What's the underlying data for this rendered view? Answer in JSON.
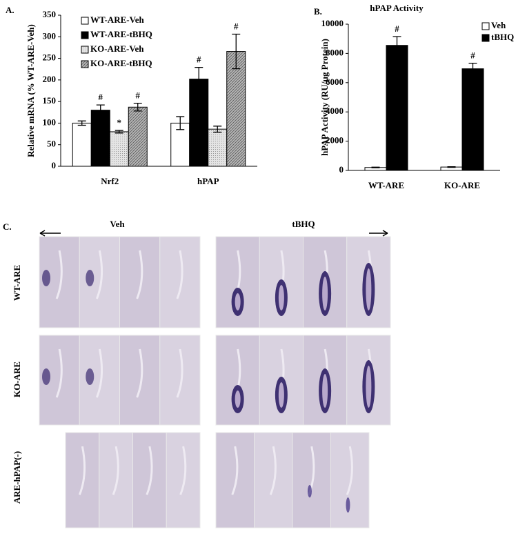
{
  "chart_data": [
    {
      "type": "bar",
      "panel_label": "A.",
      "ylabel": "Relative mRNA (% WT-ARE-Veh)",
      "categories": [
        "Nrf2",
        "hPAP"
      ],
      "ylim": [
        0,
        350
      ],
      "yticks": [
        0,
        50,
        100,
        150,
        200,
        250,
        300,
        350
      ],
      "series": [
        {
          "name": "WT-ARE-Veh",
          "color": "#ffffff",
          "pattern": "none",
          "values": [
            100,
            100
          ],
          "errors": [
            5,
            15
          ],
          "markers": [
            null,
            null
          ]
        },
        {
          "name": "WT-ARE-tBHQ",
          "color": "#000000",
          "pattern": "none",
          "values": [
            130,
            202
          ],
          "errors": [
            12,
            27
          ],
          "markers": [
            "#",
            "#"
          ]
        },
        {
          "name": "KO-ARE-Veh",
          "color": "#dcdcdc",
          "pattern": "dots",
          "values": [
            80,
            86
          ],
          "errors": [
            3,
            7
          ],
          "markers": [
            "*",
            null
          ]
        },
        {
          "name": "KO-ARE-tBHQ",
          "color": "#aaaaaa",
          "pattern": "hatch",
          "values": [
            137,
            266
          ],
          "errors": [
            9,
            40
          ],
          "markers": [
            "#",
            "#"
          ]
        }
      ]
    },
    {
      "type": "bar",
      "panel_label": "B.",
      "title": "hPAP Activity",
      "ylabel": "hPAP Activity (RU/µg Protein)",
      "categories": [
        "WT-ARE",
        "KO-ARE"
      ],
      "ylim": [
        0,
        10000
      ],
      "yticks": [
        0,
        2000,
        4000,
        6000,
        8000,
        10000
      ],
      "series": [
        {
          "name": "Veh",
          "color": "#ffffff",
          "pattern": "none",
          "values": [
            200,
            230
          ],
          "errors": [
            20,
            20
          ],
          "markers": [
            null,
            null
          ]
        },
        {
          "name": "tBHQ",
          "color": "#000000",
          "pattern": "none",
          "values": [
            8550,
            6950
          ],
          "errors": [
            600,
            380
          ],
          "markers": [
            "#",
            "#"
          ]
        }
      ]
    }
  ],
  "panel_c": {
    "label": "C.",
    "columns": [
      "Veh",
      "tBHQ"
    ],
    "rows": [
      "WT-ARE",
      "KO-ARE",
      "ARE-hPAP(-)"
    ]
  }
}
